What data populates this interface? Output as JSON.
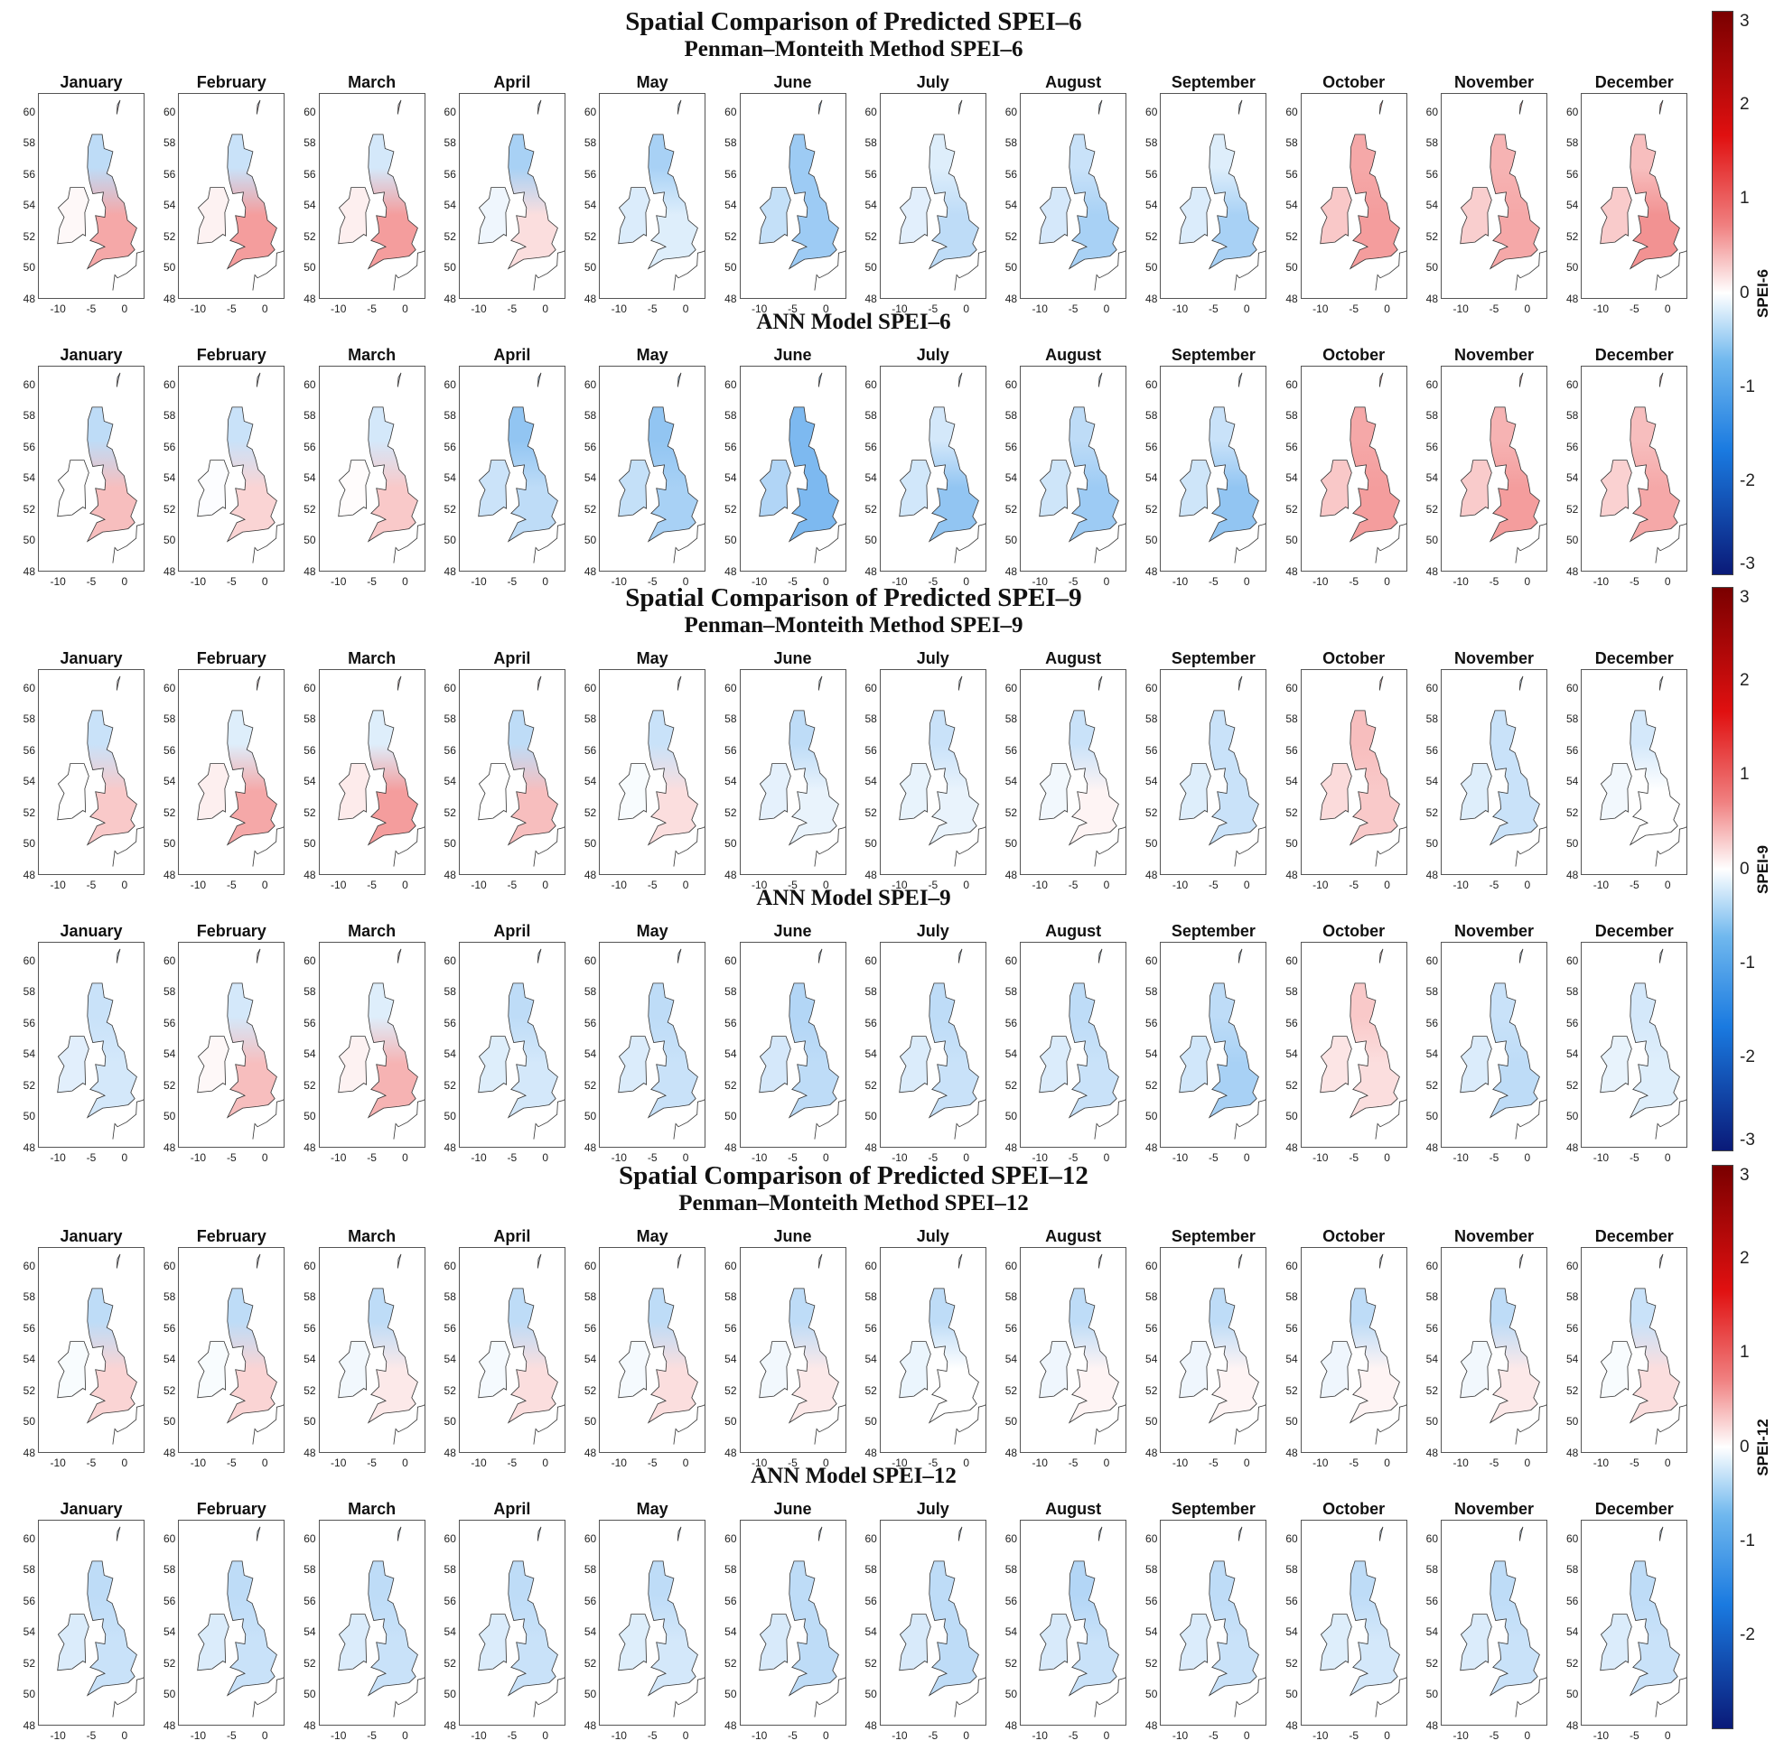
{
  "chart_data": {
    "type": "heatmap",
    "description_colorscale": "diverging blue-white-red SPEI scale",
    "months": [
      "January",
      "February",
      "March",
      "April",
      "May",
      "June",
      "July",
      "August",
      "September",
      "October",
      "November",
      "December"
    ],
    "latitude_ticks": [
      "60",
      "58",
      "56",
      "54",
      "52",
      "50",
      "48"
    ],
    "longitude_ticks": [
      "-10",
      "-5",
      "0"
    ],
    "colorscale": {
      "min": -3,
      "max": 3,
      "low": "#08306b",
      "mid": "#ffffff",
      "high": "#8b0000"
    },
    "blocks": [
      {
        "title": "Spatial Comparison of Predicted SPEI–6",
        "colorbar_label": "SPEI-6",
        "colorbar_ticks": [
          "3",
          "2",
          "1",
          "0",
          "-1",
          "-2",
          "-3"
        ],
        "rows": [
          {
            "title": "Penman–Monteith Method SPEI–6",
            "north": [
              -0.6,
              -0.5,
              -0.4,
              -0.8,
              -0.8,
              -0.9,
              -0.3,
              -0.5,
              -0.3,
              0.8,
              0.7,
              0.6
            ],
            "south": [
              0.8,
              0.9,
              0.9,
              0.3,
              -0.3,
              -0.9,
              -0.6,
              -0.8,
              -0.8,
              0.9,
              0.8,
              1.0
            ]
          },
          {
            "title": "ANN Model SPEI–6",
            "north": [
              -0.6,
              -0.5,
              -0.4,
              -1.0,
              -1.0,
              -1.2,
              -0.4,
              -0.6,
              -0.5,
              0.8,
              0.7,
              0.6
            ],
            "south": [
              0.6,
              0.4,
              0.5,
              -0.6,
              -0.8,
              -1.2,
              -1.0,
              -0.9,
              -1.0,
              0.9,
              0.9,
              0.8
            ]
          }
        ]
      },
      {
        "title": "Spatial Comparison of Predicted SPEI–9",
        "colorbar_label": "SPEI-9",
        "colorbar_ticks": [
          "3",
          "2",
          "1",
          "0",
          "-1",
          "-2",
          "-3"
        ],
        "rows": [
          {
            "title": "Penman–Monteith Method SPEI–9",
            "north": [
              -0.5,
              -0.3,
              -0.3,
              -0.6,
              -0.5,
              -0.6,
              -0.5,
              -0.5,
              -0.5,
              0.6,
              -0.5,
              -0.4
            ],
            "south": [
              0.5,
              0.8,
              0.9,
              0.6,
              0.3,
              -0.2,
              -0.2,
              0.1,
              -0.5,
              0.5,
              -0.5,
              0.0
            ]
          },
          {
            "title": "ANN Model SPEI–9",
            "north": [
              -0.5,
              -0.4,
              -0.3,
              -0.6,
              -0.6,
              -0.7,
              -0.6,
              -0.6,
              -0.6,
              0.5,
              -0.5,
              -0.4
            ],
            "south": [
              -0.4,
              0.6,
              0.7,
              -0.4,
              -0.5,
              -0.6,
              -0.5,
              -0.5,
              -0.8,
              0.3,
              -0.6,
              -0.3
            ]
          }
        ]
      },
      {
        "title": "Spatial Comparison of Predicted SPEI–12",
        "colorbar_label": "SPEI-12",
        "colorbar_ticks": [
          "3",
          "2",
          "1",
          "0",
          "-1",
          "-2"
        ],
        "rows": [
          {
            "title": "Penman–Monteith Method SPEI–12",
            "north": [
              -0.6,
              -0.6,
              -0.6,
              -0.6,
              -0.6,
              -0.6,
              -0.6,
              -0.6,
              -0.6,
              -0.6,
              -0.6,
              -0.5
            ],
            "south": [
              0.4,
              0.4,
              0.2,
              0.3,
              0.3,
              0.2,
              0.0,
              0.1,
              0.1,
              0.1,
              0.2,
              0.3
            ]
          },
          {
            "title": "ANN Model SPEI–12",
            "north": [
              -0.6,
              -0.6,
              -0.6,
              -0.6,
              -0.6,
              -0.6,
              -0.6,
              -0.7,
              -0.6,
              -0.6,
              -0.6,
              -0.6
            ],
            "south": [
              -0.5,
              -0.5,
              -0.5,
              -0.5,
              -0.4,
              -0.6,
              -0.6,
              -0.5,
              -0.5,
              -0.4,
              -0.5,
              -0.5
            ]
          }
        ]
      }
    ]
  }
}
